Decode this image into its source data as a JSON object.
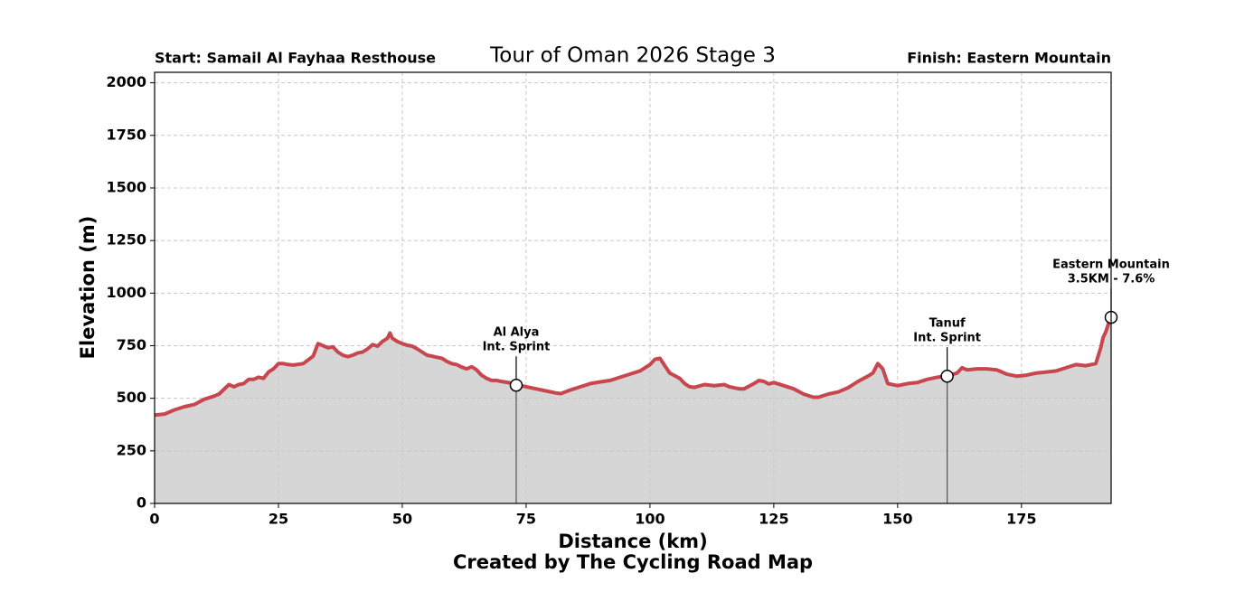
{
  "chart_data": {
    "type": "area",
    "title": "Tour of Oman 2026 Stage 3",
    "start_label": "Start: Samail Al Fayhaa Resthouse",
    "finish_label": "Finish: Eastern Mountain",
    "xlabel": "Distance (km)",
    "ylabel": "Elevation (m)",
    "footer": "Created by The Cycling Road Map",
    "color": "#c8474e",
    "fill_color": "#d6d6d6",
    "grid": true,
    "xlim": [
      0,
      193.1
    ],
    "ylim": [
      0,
      2050
    ],
    "xticks": [
      0,
      25,
      50,
      75,
      100,
      125,
      150,
      175
    ],
    "yticks": [
      0,
      250,
      500,
      750,
      1000,
      1250,
      1500,
      1750,
      2000
    ],
    "x": [
      0,
      2,
      4,
      6,
      8,
      10,
      12,
      13,
      15,
      16,
      17,
      18,
      19,
      20,
      21,
      22,
      23,
      24,
      25,
      26,
      27,
      28,
      30,
      32,
      33,
      34,
      35,
      36,
      37,
      38,
      39,
      40,
      41,
      42,
      43,
      44,
      45,
      46,
      47,
      47.5,
      48,
      49,
      50,
      51,
      52,
      53,
      54,
      55,
      56,
      57,
      58,
      59,
      60,
      61,
      62,
      63,
      64,
      65,
      66,
      67,
      68,
      69,
      70,
      72,
      73,
      75,
      77,
      79,
      81,
      82,
      84,
      86,
      88,
      90,
      92,
      94,
      96,
      98,
      100,
      101,
      102,
      103,
      104,
      106,
      107,
      108,
      109,
      111,
      113,
      115,
      116,
      118,
      119,
      121,
      122,
      123,
      124,
      125,
      127,
      129,
      131,
      133,
      134,
      136,
      138,
      140,
      142,
      144,
      145,
      146,
      147,
      148,
      150,
      152,
      154,
      156,
      158,
      160,
      162,
      163,
      164,
      166,
      168,
      170,
      172,
      174,
      176,
      178,
      180,
      182,
      184,
      186,
      188,
      190,
      191,
      191.5,
      192,
      192.5,
      193.1
    ],
    "values": [
      420,
      425,
      445,
      460,
      470,
      495,
      510,
      520,
      565,
      555,
      565,
      570,
      590,
      590,
      600,
      595,
      625,
      640,
      665,
      665,
      660,
      658,
      665,
      700,
      760,
      750,
      740,
      745,
      720,
      705,
      698,
      705,
      715,
      720,
      735,
      755,
      748,
      770,
      785,
      810,
      785,
      770,
      760,
      752,
      748,
      735,
      720,
      705,
      700,
      695,
      690,
      675,
      665,
      660,
      648,
      640,
      650,
      635,
      610,
      595,
      585,
      585,
      580,
      572,
      565,
      555,
      545,
      535,
      525,
      522,
      540,
      555,
      570,
      578,
      585,
      600,
      615,
      630,
      660,
      685,
      690,
      655,
      620,
      595,
      570,
      555,
      552,
      565,
      560,
      565,
      555,
      545,
      545,
      570,
      585,
      580,
      568,
      575,
      560,
      545,
      520,
      505,
      505,
      520,
      530,
      550,
      580,
      605,
      620,
      665,
      640,
      570,
      560,
      570,
      575,
      590,
      600,
      605,
      620,
      645,
      635,
      640,
      640,
      635,
      615,
      605,
      610,
      620,
      625,
      630,
      645,
      660,
      655,
      665,
      740,
      790,
      815,
      850,
      885
    ],
    "annotations": [
      {
        "lines": [
          "Al Alya",
          "Int. Sprint"
        ],
        "x": 73,
        "y": 562
      },
      {
        "lines": [
          "Tanuf",
          "Int. Sprint"
        ],
        "x": 160,
        "y": 605
      },
      {
        "lines": [
          "Eastern Mountain",
          "3.5KM - 7.6%"
        ],
        "x": 193.1,
        "y": 885
      }
    ]
  }
}
